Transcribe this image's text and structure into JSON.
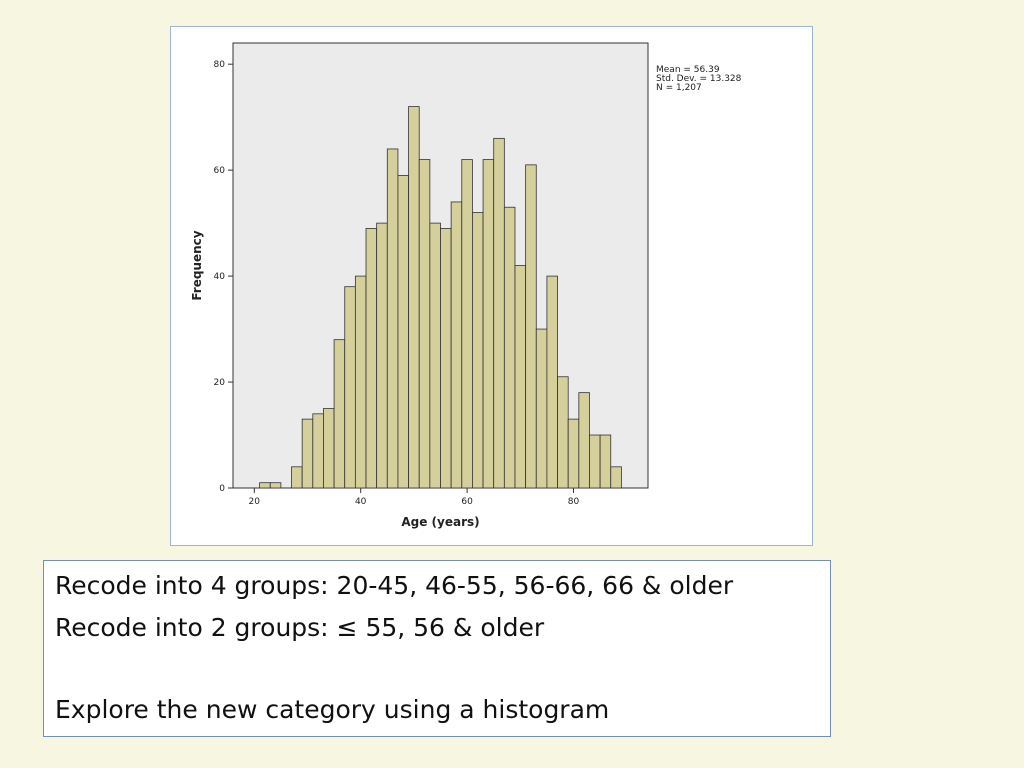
{
  "chart_data": {
    "type": "histogram",
    "xlabel": "Age (years)",
    "ylabel": "Frequency",
    "bins": [
      21,
      23,
      25,
      27,
      29,
      31,
      33,
      35,
      37,
      39,
      41,
      43,
      45,
      47,
      49,
      51,
      53,
      55,
      57,
      59,
      61,
      63,
      65,
      67,
      69,
      71,
      73,
      75,
      77,
      79,
      81,
      83,
      85,
      87,
      89
    ],
    "values": [
      1,
      1,
      0,
      4,
      13,
      14,
      15,
      28,
      38,
      40,
      49,
      50,
      64,
      59,
      72,
      62,
      50,
      49,
      54,
      62,
      52,
      62,
      66,
      53,
      42,
      61,
      30,
      40,
      21,
      13,
      18,
      10,
      10,
      4
    ],
    "color": "#d4cf9b",
    "xlim": [
      16,
      94
    ],
    "ylim": [
      0,
      84
    ],
    "xticks": [
      20,
      40,
      60,
      80
    ],
    "yticks": [
      0,
      20,
      40,
      60,
      80
    ],
    "annotations": [
      "Mean = 56.39",
      "Std. Dev. = 13.328",
      "N = 1,207"
    ]
  },
  "text_box": {
    "lines": [
      "Recode into 4 groups: 20-45, 46-55, 56-66, 66 & older",
      "Recode into 2 groups: ≤ 55, 56 & older",
      "Explore the new category using a histogram"
    ]
  }
}
